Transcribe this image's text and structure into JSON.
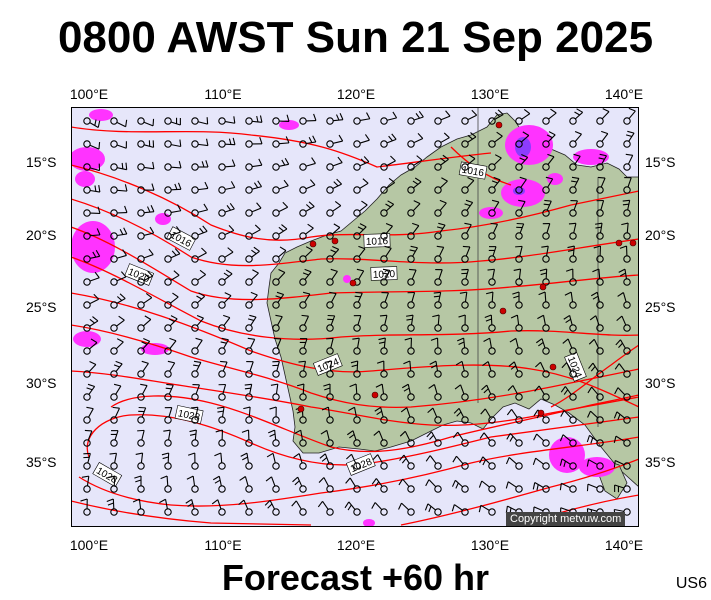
{
  "title": "0800 AWST Sun 21 Sep 2025",
  "footer": "Forecast +60 hr",
  "chart_code": "US6",
  "copyright": "Copyright metvuw.com",
  "lon_ticks": [
    "100°E",
    "110°E",
    "120°E",
    "130°E",
    "140°E"
  ],
  "lat_ticks": [
    "15°S",
    "20°S",
    "25°S",
    "30°S",
    "35°S"
  ],
  "isobar_labels": [
    "1016",
    "1020",
    "1016",
    "1020",
    "1024",
    "1024",
    "1028",
    "1028",
    "1028",
    "1016"
  ],
  "colors": {
    "sea": "#e6e6fa",
    "land": "#b6c7a4",
    "isobar": "#ff0000",
    "rain_light": "#ff33ff",
    "rain_heavy": "#8c3cff"
  },
  "legend_icons": [
    "wind-barb-icon",
    "calm-circle-icon",
    "high-pressure-dot-icon"
  ]
}
